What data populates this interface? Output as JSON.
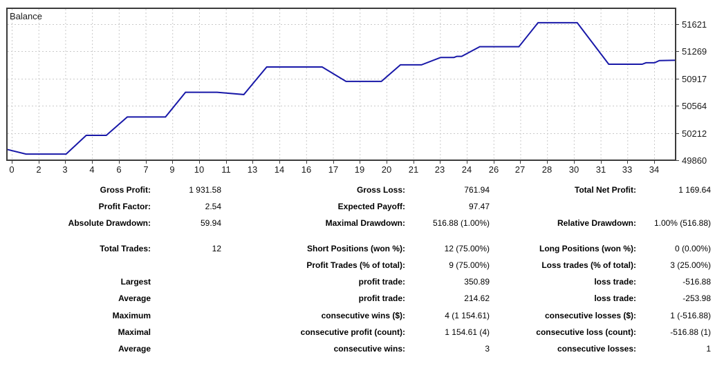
{
  "chart_data": {
    "type": "line",
    "title": "Balance",
    "line_color": "#1818a8",
    "grid_color": "#c9c9c9",
    "border_color": "#3a3a3a",
    "text_color": "#1a1a1a",
    "xlim": [
      0,
      35
    ],
    "ylim": [
      49860,
      51827
    ],
    "x_tick_labels": [
      "0",
      "2",
      "3",
      "4",
      "6",
      "7",
      "9",
      "10",
      "11",
      "13",
      "14",
      "16",
      "17",
      "19",
      "20",
      "21",
      "23",
      "24",
      "26",
      "27",
      "28",
      "30",
      "31",
      "33",
      "34"
    ],
    "y_ticks": [
      {
        "value": 51621,
        "label": "51621"
      },
      {
        "value": 51269,
        "label": "51269"
      },
      {
        "value": 50917,
        "label": "50917"
      },
      {
        "value": 50564,
        "label": "50564"
      },
      {
        "value": 50212,
        "label": "50212"
      },
      {
        "value": 49860,
        "label": "49860"
      }
    ],
    "y_gridline_values": [
      50212,
      50564,
      50917,
      51269,
      51621
    ],
    "series": [
      {
        "name": "Balance",
        "points": [
          [
            0,
            50000
          ],
          [
            1,
            49940
          ],
          [
            3.1,
            49940
          ],
          [
            4.15,
            50182
          ],
          [
            5.2,
            50182
          ],
          [
            6.3,
            50420
          ],
          [
            8.3,
            50420
          ],
          [
            9.35,
            50740
          ],
          [
            11.0,
            50740
          ],
          [
            12.4,
            50710
          ],
          [
            13.6,
            51067
          ],
          [
            16.5,
            51067
          ],
          [
            17.75,
            50880
          ],
          [
            19.6,
            50880
          ],
          [
            20.6,
            51095
          ],
          [
            21.7,
            51095
          ],
          [
            22.7,
            51190
          ],
          [
            23.4,
            51190
          ],
          [
            23.55,
            51205
          ],
          [
            23.8,
            51205
          ],
          [
            24.75,
            51330
          ],
          [
            26.8,
            51330
          ],
          [
            27.8,
            51640
          ],
          [
            29.85,
            51640
          ],
          [
            31.5,
            51103
          ],
          [
            33.25,
            51103
          ],
          [
            33.45,
            51122
          ],
          [
            33.9,
            51122
          ],
          [
            34.15,
            51150
          ],
          [
            35,
            51155
          ]
        ]
      }
    ]
  },
  "stats": {
    "rows": [
      {
        "c1l": "Gross Profit:",
        "c1v": "1 931.58",
        "c2l": "Gross Loss:",
        "c2v": "761.94",
        "c3l": "Total Net Profit:",
        "c3v": "1 169.64"
      },
      {
        "c1l": "Profit Factor:",
        "c1v": "2.54",
        "c2l": "Expected Payoff:",
        "c2v": "97.47",
        "c3l": "",
        "c3v": ""
      },
      {
        "c1l": "Absolute Drawdown:",
        "c1v": "59.94",
        "c2l": "Maximal Drawdown:",
        "c2v": "516.88 (1.00%)",
        "c3l": "Relative Drawdown:",
        "c3v": "1.00% (516.88)"
      },
      {
        "c1l": "Total Trades:",
        "c1v": "12",
        "c2l": "Short Positions (won %):",
        "c2v": "12 (75.00%)",
        "c3l": "Long Positions (won %):",
        "c3v": "0 (0.00%)"
      },
      {
        "c1l": "",
        "c1v": "",
        "c2l": "Profit Trades (% of total):",
        "c2v": "9 (75.00%)",
        "c3l": "Loss trades (% of total):",
        "c3v": "3 (25.00%)"
      },
      {
        "c1l": "Largest",
        "c1v": "",
        "c2l": "profit trade:",
        "c2v": "350.89",
        "c3l": "loss trade:",
        "c3v": "-516.88"
      },
      {
        "c1l": "Average",
        "c1v": "",
        "c2l": "profit trade:",
        "c2v": "214.62",
        "c3l": "loss trade:",
        "c3v": "-253.98"
      },
      {
        "c1l": "Maximum",
        "c1v": "",
        "c2l": "consecutive wins ($):",
        "c2v": "4 (1 154.61)",
        "c3l": "consecutive losses ($):",
        "c3v": "1 (-516.88)"
      },
      {
        "c1l": "Maximal",
        "c1v": "",
        "c2l": "consecutive profit (count):",
        "c2v": "1 154.61 (4)",
        "c3l": "consecutive loss (count):",
        "c3v": "-516.88 (1)"
      },
      {
        "c1l": "Average",
        "c1v": "",
        "c2l": "consecutive wins:",
        "c2v": "3",
        "c3l": "consecutive losses:",
        "c3v": "1"
      }
    ]
  }
}
